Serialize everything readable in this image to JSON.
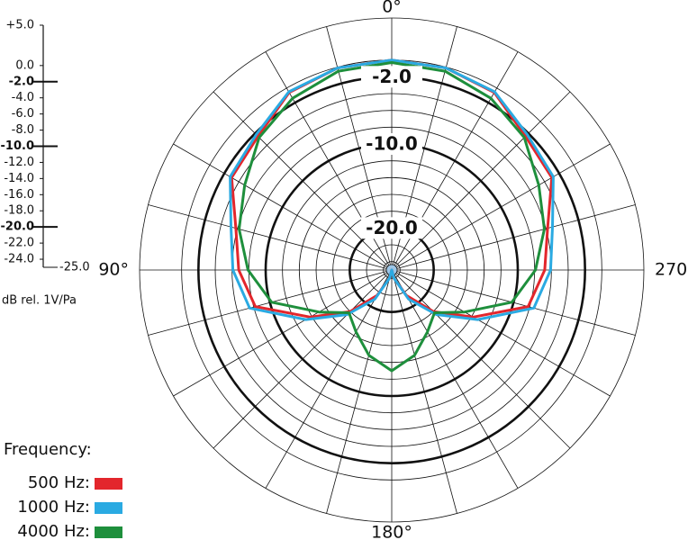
{
  "chart_data": {
    "type": "polar",
    "y_label": "dB rel. 1V/Pa",
    "legend_title": "Frequency:",
    "x": [
      0,
      15,
      30,
      45,
      60,
      75,
      90,
      105,
      120,
      135,
      150,
      165,
      180,
      195,
      210,
      225,
      240,
      255,
      270,
      285,
      300,
      315,
      330,
      345
    ],
    "xticks": [
      {
        "value": 0,
        "label": "0°"
      },
      {
        "value": 90,
        "label": "90°"
      },
      {
        "value": 180,
        "label": "180°"
      },
      {
        "value": 270,
        "label": "270°"
      }
    ],
    "ylim": [
      -25,
      5
    ],
    "yticks": [
      {
        "value": 5,
        "label": "+5.0"
      },
      {
        "value": 0,
        "label": "0.0"
      },
      {
        "value": -2,
        "label": "-2.0",
        "bold": true
      },
      {
        "value": -4,
        "label": "-4.0"
      },
      {
        "value": -6,
        "label": "-6.0"
      },
      {
        "value": -8,
        "label": "-8.0"
      },
      {
        "value": -10,
        "label": "-10.0",
        "bold": true
      },
      {
        "value": -12,
        "label": "-12.0"
      },
      {
        "value": -14,
        "label": "-14.0"
      },
      {
        "value": -16,
        "label": "-16.0"
      },
      {
        "value": -18,
        "label": "-18.0"
      },
      {
        "value": -20,
        "label": "-20.0",
        "bold": true
      },
      {
        "value": -22,
        "label": "-22.0"
      },
      {
        "value": -24,
        "label": "-24.0"
      },
      {
        "value": -25,
        "label": "-25.0"
      }
    ],
    "series": [
      {
        "name": "500 Hz:",
        "color": "#e3262c",
        "values": [
          0,
          -0.1,
          -0.6,
          -2.5,
          -3.0,
          -5.8,
          -6.8,
          -8.2,
          -13.8,
          -18,
          -21.5,
          -24,
          -25,
          -24,
          -21.5,
          -18,
          -13.8,
          -8.2,
          -6.8,
          -5.8,
          -3.0,
          -2.5,
          -0.6,
          -0.1
        ]
      },
      {
        "name": "1000 Hz:",
        "color": "#2aaae2",
        "values": [
          0,
          -0.1,
          -0.5,
          -2.2,
          -2.8,
          -5.2,
          -6.1,
          -7.5,
          -13.2,
          -17.5,
          -21,
          -24,
          -25,
          -24,
          -21,
          -17.5,
          -13.2,
          -7.5,
          -6.1,
          -5.2,
          -2.8,
          -2.2,
          -0.5,
          -0.1
        ]
      },
      {
        "name": "4000 Hz:",
        "color": "#1e8f3c",
        "values": [
          -0.3,
          -0.5,
          -1.4,
          -2.7,
          -4.8,
          -6.2,
          -7.9,
          -10.2,
          -15,
          -17.8,
          -16.5,
          -14.5,
          -13,
          -14.5,
          -16.5,
          -17.8,
          -15,
          -10.2,
          -7.9,
          -6.2,
          -4.8,
          -2.7,
          -1.4,
          -0.5
        ]
      }
    ]
  }
}
